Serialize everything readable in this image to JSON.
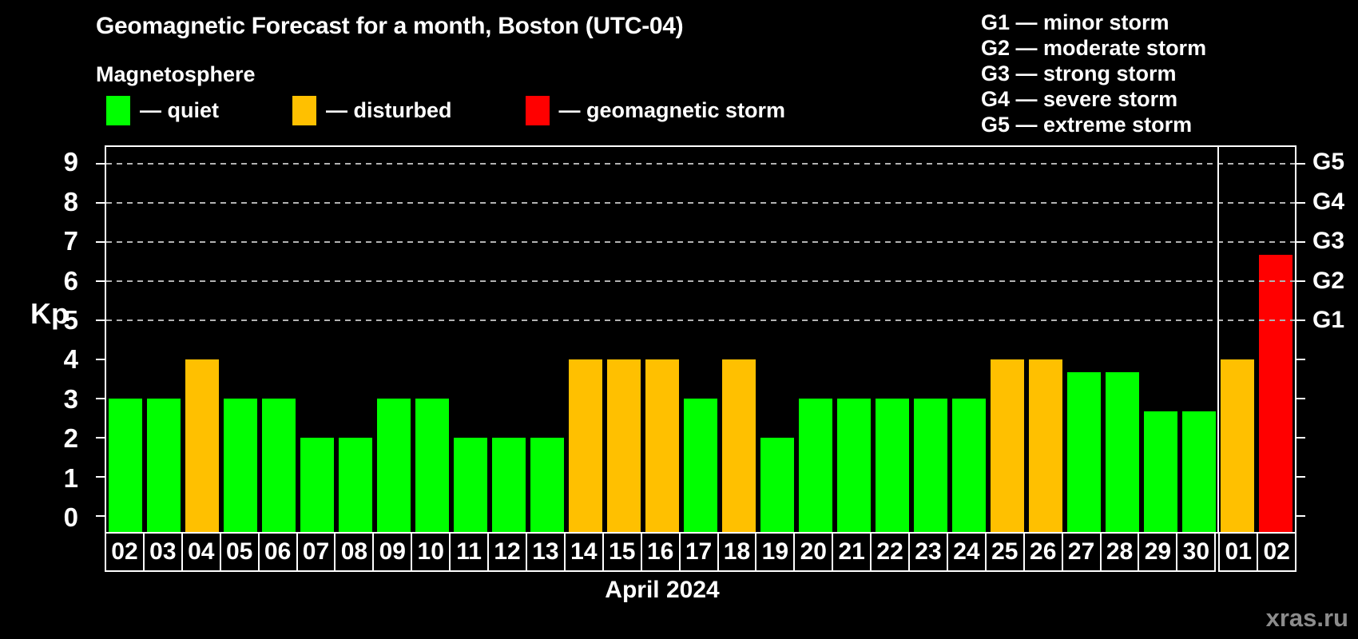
{
  "title": "Geomagnetic Forecast for a month, Boston (UTC-04)",
  "subtitle": "Magnetosphere",
  "legend": {
    "items": [
      {
        "name": "quiet",
        "label": "— quiet",
        "color": "#00ff00"
      },
      {
        "name": "disturbed",
        "label": "— disturbed",
        "color": "#ffc000"
      },
      {
        "name": "storm",
        "label": "— geomagnetic storm",
        "color": "#ff0000"
      }
    ]
  },
  "g_legend": [
    "G1 — minor storm",
    "G2 — moderate storm",
    "G3 — strong storm",
    "G4 — severe storm",
    "G5 — extreme storm"
  ],
  "chart_data": {
    "type": "bar",
    "title": "Geomagnetic Forecast for a month, Boston (UTC-04)",
    "ylabel": "Kp",
    "xlabel": "April 2024",
    "ylim": [
      -0.4,
      9.43
    ],
    "yticks": [
      0,
      1,
      2,
      3,
      4,
      5,
      6,
      7,
      8,
      9
    ],
    "gridlines_at": [
      5,
      6,
      7,
      8,
      9
    ],
    "grid": true,
    "right_axis_labels": [
      {
        "label": "G1",
        "value": 5
      },
      {
        "label": "G2",
        "value": 6
      },
      {
        "label": "G3",
        "value": 7
      },
      {
        "label": "G4",
        "value": 8
      },
      {
        "label": "G5",
        "value": 9
      }
    ],
    "bars": [
      {
        "day": "02",
        "value": 3,
        "status": "quiet"
      },
      {
        "day": "03",
        "value": 3,
        "status": "quiet"
      },
      {
        "day": "04",
        "value": 4,
        "status": "disturbed"
      },
      {
        "day": "05",
        "value": 3,
        "status": "quiet"
      },
      {
        "day": "06",
        "value": 3,
        "status": "quiet"
      },
      {
        "day": "07",
        "value": 2,
        "status": "quiet"
      },
      {
        "day": "08",
        "value": 2,
        "status": "quiet"
      },
      {
        "day": "09",
        "value": 3,
        "status": "quiet"
      },
      {
        "day": "10",
        "value": 3,
        "status": "quiet"
      },
      {
        "day": "11",
        "value": 2,
        "status": "quiet"
      },
      {
        "day": "12",
        "value": 2,
        "status": "quiet"
      },
      {
        "day": "13",
        "value": 2,
        "status": "quiet"
      },
      {
        "day": "14",
        "value": 4,
        "status": "disturbed"
      },
      {
        "day": "15",
        "value": 4,
        "status": "disturbed"
      },
      {
        "day": "16",
        "value": 4,
        "status": "disturbed"
      },
      {
        "day": "17",
        "value": 3,
        "status": "quiet"
      },
      {
        "day": "18",
        "value": 4,
        "status": "disturbed"
      },
      {
        "day": "19",
        "value": 2,
        "status": "quiet"
      },
      {
        "day": "20",
        "value": 3,
        "status": "quiet"
      },
      {
        "day": "21",
        "value": 3,
        "status": "quiet"
      },
      {
        "day": "22",
        "value": 3,
        "status": "quiet"
      },
      {
        "day": "23",
        "value": 3,
        "status": "quiet"
      },
      {
        "day": "24",
        "value": 3,
        "status": "quiet"
      },
      {
        "day": "25",
        "value": 4,
        "status": "disturbed"
      },
      {
        "day": "26",
        "value": 4,
        "status": "disturbed"
      },
      {
        "day": "27",
        "value": 3.67,
        "status": "quiet"
      },
      {
        "day": "28",
        "value": 3.67,
        "status": "quiet"
      },
      {
        "day": "29",
        "value": 2.67,
        "status": "quiet"
      },
      {
        "day": "30",
        "value": 2.67,
        "status": "quiet"
      },
      {
        "day": "01",
        "value": 4,
        "status": "disturbed"
      },
      {
        "day": "02",
        "value": 6.67,
        "status": "storm"
      }
    ],
    "month_separator_before_index": 29,
    "colors": {
      "quiet": "#00ff00",
      "disturbed": "#ffc000",
      "storm": "#ff0000",
      "background": "#000000",
      "grid": "#b3b3b3",
      "axis": "#ffffff"
    },
    "legend_position": "top-left"
  },
  "watermark": "xras.ru"
}
